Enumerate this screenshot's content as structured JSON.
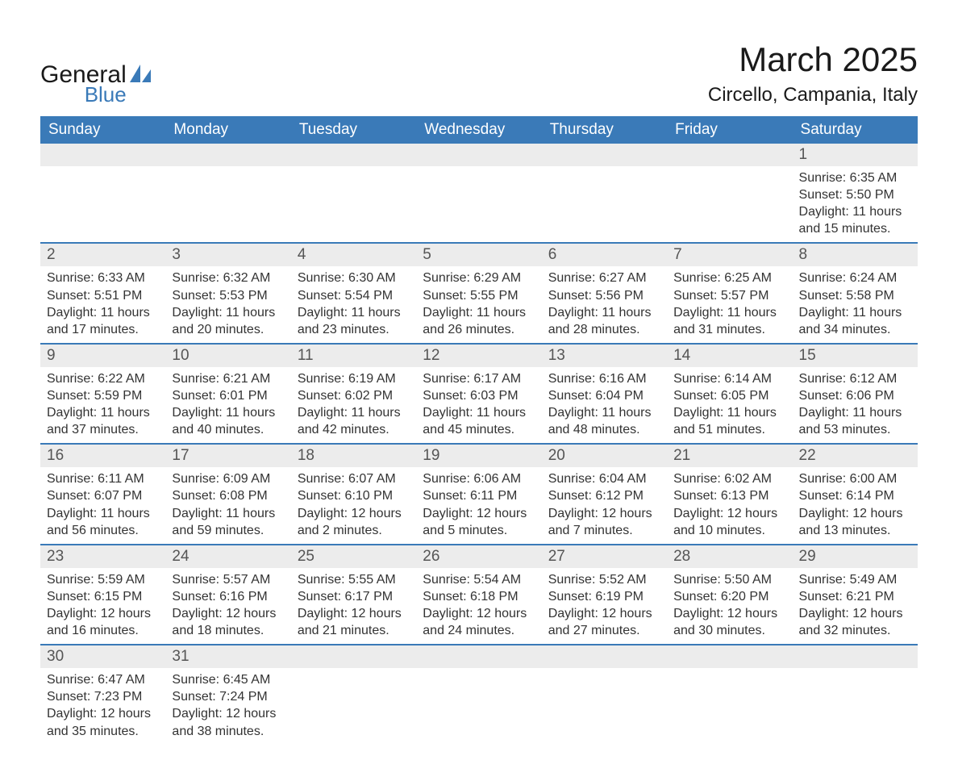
{
  "branding": {
    "logo_general": "General",
    "logo_blue": "Blue",
    "logo_shape_color": "#3a7ab8"
  },
  "header": {
    "title": "March 2025",
    "location": "Circello, Campania, Italy"
  },
  "colors": {
    "header_bg": "#3a7ab8",
    "header_text": "#ffffff",
    "daynum_bg": "#ececec",
    "daynum_text": "#555555",
    "body_text": "#333333",
    "row_divider": "#3a7ab8",
    "page_bg": "#ffffff"
  },
  "typography": {
    "title_fontsize": 42,
    "subtitle_fontsize": 24,
    "header_cell_fontsize": 19,
    "daynum_fontsize": 19,
    "body_fontsize": 16,
    "font_family": "Arial"
  },
  "weekdays": [
    "Sunday",
    "Monday",
    "Tuesday",
    "Wednesday",
    "Thursday",
    "Friday",
    "Saturday"
  ],
  "weeks": [
    [
      null,
      null,
      null,
      null,
      null,
      null,
      {
        "n": "1",
        "sunrise": "Sunrise: 6:35 AM",
        "sunset": "Sunset: 5:50 PM",
        "daylight": "Daylight: 11 hours and 15 minutes."
      }
    ],
    [
      {
        "n": "2",
        "sunrise": "Sunrise: 6:33 AM",
        "sunset": "Sunset: 5:51 PM",
        "daylight": "Daylight: 11 hours and 17 minutes."
      },
      {
        "n": "3",
        "sunrise": "Sunrise: 6:32 AM",
        "sunset": "Sunset: 5:53 PM",
        "daylight": "Daylight: 11 hours and 20 minutes."
      },
      {
        "n": "4",
        "sunrise": "Sunrise: 6:30 AM",
        "sunset": "Sunset: 5:54 PM",
        "daylight": "Daylight: 11 hours and 23 minutes."
      },
      {
        "n": "5",
        "sunrise": "Sunrise: 6:29 AM",
        "sunset": "Sunset: 5:55 PM",
        "daylight": "Daylight: 11 hours and 26 minutes."
      },
      {
        "n": "6",
        "sunrise": "Sunrise: 6:27 AM",
        "sunset": "Sunset: 5:56 PM",
        "daylight": "Daylight: 11 hours and 28 minutes."
      },
      {
        "n": "7",
        "sunrise": "Sunrise: 6:25 AM",
        "sunset": "Sunset: 5:57 PM",
        "daylight": "Daylight: 11 hours and 31 minutes."
      },
      {
        "n": "8",
        "sunrise": "Sunrise: 6:24 AM",
        "sunset": "Sunset: 5:58 PM",
        "daylight": "Daylight: 11 hours and 34 minutes."
      }
    ],
    [
      {
        "n": "9",
        "sunrise": "Sunrise: 6:22 AM",
        "sunset": "Sunset: 5:59 PM",
        "daylight": "Daylight: 11 hours and 37 minutes."
      },
      {
        "n": "10",
        "sunrise": "Sunrise: 6:21 AM",
        "sunset": "Sunset: 6:01 PM",
        "daylight": "Daylight: 11 hours and 40 minutes."
      },
      {
        "n": "11",
        "sunrise": "Sunrise: 6:19 AM",
        "sunset": "Sunset: 6:02 PM",
        "daylight": "Daylight: 11 hours and 42 minutes."
      },
      {
        "n": "12",
        "sunrise": "Sunrise: 6:17 AM",
        "sunset": "Sunset: 6:03 PM",
        "daylight": "Daylight: 11 hours and 45 minutes."
      },
      {
        "n": "13",
        "sunrise": "Sunrise: 6:16 AM",
        "sunset": "Sunset: 6:04 PM",
        "daylight": "Daylight: 11 hours and 48 minutes."
      },
      {
        "n": "14",
        "sunrise": "Sunrise: 6:14 AM",
        "sunset": "Sunset: 6:05 PM",
        "daylight": "Daylight: 11 hours and 51 minutes."
      },
      {
        "n": "15",
        "sunrise": "Sunrise: 6:12 AM",
        "sunset": "Sunset: 6:06 PM",
        "daylight": "Daylight: 11 hours and 53 minutes."
      }
    ],
    [
      {
        "n": "16",
        "sunrise": "Sunrise: 6:11 AM",
        "sunset": "Sunset: 6:07 PM",
        "daylight": "Daylight: 11 hours and 56 minutes."
      },
      {
        "n": "17",
        "sunrise": "Sunrise: 6:09 AM",
        "sunset": "Sunset: 6:08 PM",
        "daylight": "Daylight: 11 hours and 59 minutes."
      },
      {
        "n": "18",
        "sunrise": "Sunrise: 6:07 AM",
        "sunset": "Sunset: 6:10 PM",
        "daylight": "Daylight: 12 hours and 2 minutes."
      },
      {
        "n": "19",
        "sunrise": "Sunrise: 6:06 AM",
        "sunset": "Sunset: 6:11 PM",
        "daylight": "Daylight: 12 hours and 5 minutes."
      },
      {
        "n": "20",
        "sunrise": "Sunrise: 6:04 AM",
        "sunset": "Sunset: 6:12 PM",
        "daylight": "Daylight: 12 hours and 7 minutes."
      },
      {
        "n": "21",
        "sunrise": "Sunrise: 6:02 AM",
        "sunset": "Sunset: 6:13 PM",
        "daylight": "Daylight: 12 hours and 10 minutes."
      },
      {
        "n": "22",
        "sunrise": "Sunrise: 6:00 AM",
        "sunset": "Sunset: 6:14 PM",
        "daylight": "Daylight: 12 hours and 13 minutes."
      }
    ],
    [
      {
        "n": "23",
        "sunrise": "Sunrise: 5:59 AM",
        "sunset": "Sunset: 6:15 PM",
        "daylight": "Daylight: 12 hours and 16 minutes."
      },
      {
        "n": "24",
        "sunrise": "Sunrise: 5:57 AM",
        "sunset": "Sunset: 6:16 PM",
        "daylight": "Daylight: 12 hours and 18 minutes."
      },
      {
        "n": "25",
        "sunrise": "Sunrise: 5:55 AM",
        "sunset": "Sunset: 6:17 PM",
        "daylight": "Daylight: 12 hours and 21 minutes."
      },
      {
        "n": "26",
        "sunrise": "Sunrise: 5:54 AM",
        "sunset": "Sunset: 6:18 PM",
        "daylight": "Daylight: 12 hours and 24 minutes."
      },
      {
        "n": "27",
        "sunrise": "Sunrise: 5:52 AM",
        "sunset": "Sunset: 6:19 PM",
        "daylight": "Daylight: 12 hours and 27 minutes."
      },
      {
        "n": "28",
        "sunrise": "Sunrise: 5:50 AM",
        "sunset": "Sunset: 6:20 PM",
        "daylight": "Daylight: 12 hours and 30 minutes."
      },
      {
        "n": "29",
        "sunrise": "Sunrise: 5:49 AM",
        "sunset": "Sunset: 6:21 PM",
        "daylight": "Daylight: 12 hours and 32 minutes."
      }
    ],
    [
      {
        "n": "30",
        "sunrise": "Sunrise: 6:47 AM",
        "sunset": "Sunset: 7:23 PM",
        "daylight": "Daylight: 12 hours and 35 minutes."
      },
      {
        "n": "31",
        "sunrise": "Sunrise: 6:45 AM",
        "sunset": "Sunset: 7:24 PM",
        "daylight": "Daylight: 12 hours and 38 minutes."
      },
      null,
      null,
      null,
      null,
      null
    ]
  ]
}
